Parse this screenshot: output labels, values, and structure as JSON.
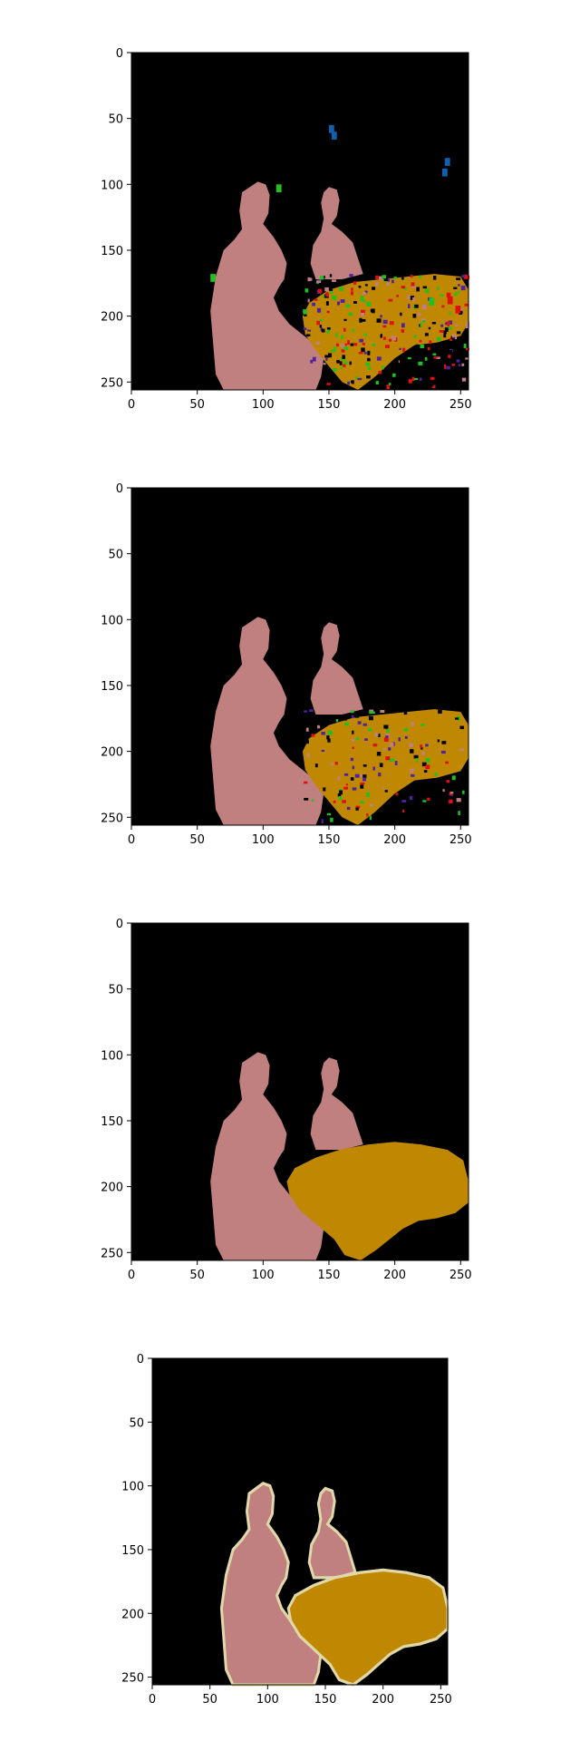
{
  "colors": {
    "background": "#000000",
    "person": "#c08080",
    "table": "#c08800",
    "boundary": "#e0d8a8",
    "noise_red": "#e01010",
    "noise_green": "#20c020",
    "noise_purple": "#5020a0",
    "noise_blue": "#1060b0"
  },
  "panels": [
    {
      "name": "panel-1",
      "title": "",
      "x_ticks": [
        0,
        50,
        100,
        150,
        200,
        250
      ],
      "y_ticks": [
        0,
        50,
        100,
        150,
        200,
        250
      ],
      "x_labels": [
        "0",
        "50",
        "100",
        "150",
        "200",
        "250"
      ],
      "y_labels": [
        "0",
        "50",
        "100",
        "150",
        "200",
        "250"
      ]
    },
    {
      "name": "panel-2",
      "title": "",
      "x_ticks": [
        0,
        50,
        100,
        150,
        200,
        250
      ],
      "y_ticks": [
        0,
        50,
        100,
        150,
        200,
        250
      ],
      "x_labels": [
        "0",
        "50",
        "100",
        "150",
        "200",
        "250"
      ],
      "y_labels": [
        "0",
        "50",
        "100",
        "150",
        "200",
        "250"
      ]
    },
    {
      "name": "panel-3",
      "title": "",
      "x_ticks": [
        0,
        50,
        100,
        150,
        200,
        250
      ],
      "y_ticks": [
        0,
        50,
        100,
        150,
        200,
        250
      ],
      "x_labels": [
        "0",
        "50",
        "100",
        "150",
        "200",
        "250"
      ],
      "y_labels": [
        "0",
        "50",
        "100",
        "150",
        "200",
        "250"
      ]
    },
    {
      "name": "panel-4",
      "title": "",
      "x_ticks": [
        0,
        50,
        100,
        150,
        200,
        250
      ],
      "y_ticks": [
        0,
        50,
        100,
        150,
        200,
        250
      ],
      "x_labels": [
        "0",
        "50",
        "100",
        "150",
        "200",
        "250"
      ],
      "y_labels": [
        "0",
        "50",
        "100",
        "150",
        "200",
        "250"
      ]
    }
  ]
}
